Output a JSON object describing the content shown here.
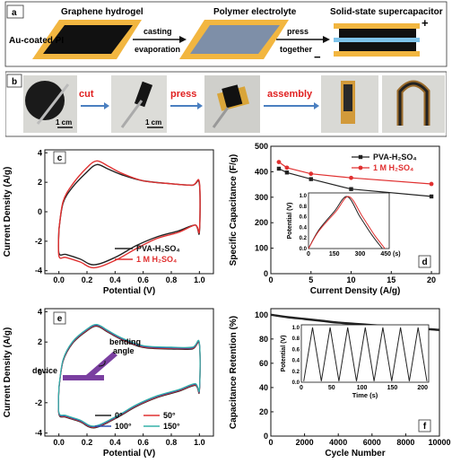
{
  "panel_a": {
    "letter": "a",
    "labels": {
      "graphene_hydrogel": "Graphene hydrogel",
      "au_coated_pi": "Au-coated PI",
      "casting": "casting",
      "evaporation": "evaporation",
      "polymer_electrolyte": "Polymer electrolyte",
      "press": "press",
      "together": "together",
      "supercap": "Solid-state supercapacitor",
      "plus": "+",
      "minus": "−"
    },
    "colors": {
      "gold": "#f2b640",
      "dark": "#111111",
      "blue_film": "#7e8fa8",
      "separator": "#7ec3ea"
    }
  },
  "panel_b": {
    "letter": "b",
    "steps": [
      "cut",
      "press",
      "assembly"
    ],
    "scale1": "1 cm",
    "scale2": "1 cm",
    "step_color": "#e02020",
    "arrow_color": "#4a7fc0"
  },
  "chart_data": [
    {
      "panel": "c",
      "type": "line",
      "xlabel": "Potential (V)",
      "ylabel": "Current Density (A/g)",
      "xlim": [
        -0.1,
        1.1
      ],
      "ylim": [
        -4.2,
        4.2
      ],
      "xticks": [
        "0.0",
        "0.2",
        "0.4",
        "0.6",
        "0.8",
        "1.0"
      ],
      "yticks": [
        "-4",
        "-2",
        "0",
        "2",
        "4"
      ],
      "series": [
        {
          "name": "PVA-H₂SO₄",
          "color": "#222222",
          "upper": [
            [
              0.0,
              -1.2
            ],
            [
              0.03,
              0.6
            ],
            [
              0.1,
              1.7
            ],
            [
              0.2,
              2.7
            ],
            [
              0.27,
              3.2
            ],
            [
              0.35,
              2.9
            ],
            [
              0.45,
              2.5
            ],
            [
              0.6,
              2.1
            ],
            [
              0.8,
              1.9
            ],
            [
              0.95,
              1.8
            ],
            [
              1.0,
              1.9
            ]
          ],
          "lower": [
            [
              1.0,
              -1.4
            ],
            [
              0.97,
              -0.9
            ],
            [
              0.85,
              -1.3
            ],
            [
              0.7,
              -1.7
            ],
            [
              0.55,
              -2.3
            ],
            [
              0.4,
              -3.1
            ],
            [
              0.25,
              -3.6
            ],
            [
              0.15,
              -3.2
            ],
            [
              0.05,
              -2.9
            ],
            [
              0.0,
              -2.8
            ]
          ]
        },
        {
          "name": "1 M H₂SO₄",
          "color": "#e03030",
          "upper": [
            [
              0.0,
              -1.2
            ],
            [
              0.03,
              0.7
            ],
            [
              0.1,
              1.9
            ],
            [
              0.2,
              3.0
            ],
            [
              0.27,
              3.45
            ],
            [
              0.35,
              3.1
            ],
            [
              0.45,
              2.6
            ],
            [
              0.6,
              2.1
            ],
            [
              0.8,
              1.9
            ],
            [
              0.95,
              1.8
            ],
            [
              1.0,
              2.0
            ]
          ],
          "lower": [
            [
              1.0,
              -1.3
            ],
            [
              0.97,
              -0.9
            ],
            [
              0.85,
              -1.4
            ],
            [
              0.7,
              -1.8
            ],
            [
              0.55,
              -2.5
            ],
            [
              0.4,
              -3.3
            ],
            [
              0.25,
              -3.8
            ],
            [
              0.15,
              -3.4
            ],
            [
              0.05,
              -3.1
            ],
            [
              0.0,
              -3.0
            ]
          ]
        }
      ]
    },
    {
      "panel": "d",
      "type": "line",
      "xlabel": "Current Density (A/g)",
      "ylabel": "Specific Capacitance (F/g)",
      "xlim": [
        0,
        21
      ],
      "ylim": [
        0,
        500
      ],
      "xticks": [
        "0",
        "5",
        "10",
        "15",
        "20"
      ],
      "yticks": [
        "0",
        "100",
        "200",
        "300",
        "400",
        "500"
      ],
      "series": [
        {
          "name": "PVA-H₂SO₄",
          "color": "#222222",
          "x": [
            1,
            2,
            5,
            10,
            20
          ],
          "y": [
            412,
            397,
            371,
            332,
            303
          ]
        },
        {
          "name": "1 M H₂SO₄",
          "color": "#e03030",
          "x": [
            1,
            2,
            5,
            10,
            20
          ],
          "y": [
            438,
            416,
            392,
            376,
            352
          ]
        }
      ],
      "inset": {
        "xlabel": "(s)",
        "ylabel": "Potential (V)",
        "xticks": [
          "0",
          "150",
          "300",
          "450"
        ],
        "yticks": [
          "0.0",
          "0.2",
          "0.4",
          "0.6",
          "0.8",
          "1.0"
        ],
        "xlim": [
          0,
          470
        ],
        "ylim": [
          0,
          1.05
        ],
        "series": [
          {
            "color": "#222222",
            "points": [
              [
                0,
                0
              ],
              [
                60,
                0.35
              ],
              [
                150,
                0.7
              ],
              [
                225,
                0.98
              ],
              [
                300,
                0.6
              ],
              [
                370,
                0.25
              ],
              [
                430,
                0
              ]
            ]
          },
          {
            "color": "#e03030",
            "points": [
              [
                0,
                0
              ],
              [
                60,
                0.33
              ],
              [
                160,
                0.7
              ],
              [
                235,
                0.98
              ],
              [
                315,
                0.6
              ],
              [
                385,
                0.25
              ],
              [
                445,
                0
              ]
            ]
          }
        ]
      }
    },
    {
      "panel": "e",
      "type": "line",
      "xlabel": "Potential (V)",
      "ylabel": "Current Density (A/g)",
      "xlim": [
        -0.1,
        1.1
      ],
      "ylim": [
        -4.2,
        4.2
      ],
      "xticks": [
        "0.0",
        "0.2",
        "0.4",
        "0.6",
        "0.8",
        "1.0"
      ],
      "yticks": [
        "-4",
        "-2",
        "0",
        "2",
        "4"
      ],
      "series": [
        {
          "name": "0°",
          "color": "#222222"
        },
        {
          "name": "50°",
          "color": "#e03030"
        },
        {
          "name": "100°",
          "color": "#2f4fb0"
        },
        {
          "name": "150°",
          "color": "#37b2a8"
        }
      ],
      "curve": {
        "upper": [
          [
            0.0,
            -1.0
          ],
          [
            0.03,
            0.8
          ],
          [
            0.1,
            2.0
          ],
          [
            0.2,
            2.8
          ],
          [
            0.27,
            3.1
          ],
          [
            0.35,
            2.7
          ],
          [
            0.45,
            2.2
          ],
          [
            0.6,
            1.7
          ],
          [
            0.8,
            1.6
          ],
          [
            0.95,
            1.6
          ],
          [
            1.0,
            1.9
          ]
        ],
        "lower": [
          [
            1.0,
            -1.2
          ],
          [
            0.97,
            -0.8
          ],
          [
            0.85,
            -1.2
          ],
          [
            0.7,
            -1.6
          ],
          [
            0.55,
            -2.2
          ],
          [
            0.4,
            -3.0
          ],
          [
            0.25,
            -3.6
          ],
          [
            0.15,
            -3.2
          ],
          [
            0.05,
            -2.9
          ],
          [
            0.0,
            -2.7
          ]
        ]
      },
      "inset_labels": {
        "bending": "bending",
        "angle": "angle",
        "device": "device"
      }
    },
    {
      "panel": "f",
      "type": "line",
      "xlabel": "Cycle Number",
      "ylabel": "Capacitance Retention (%)",
      "xlim": [
        0,
        10000
      ],
      "ylim": [
        0,
        105
      ],
      "xticks": [
        "0",
        "2000",
        "4000",
        "6000",
        "8000",
        "10000"
      ],
      "yticks": [
        "0",
        "20",
        "40",
        "60",
        "80",
        "100"
      ],
      "series": [
        {
          "color": "#222222",
          "x": [
            0,
            1000,
            2000,
            3000,
            4000,
            5000,
            6000,
            7000,
            8000,
            9000,
            10000
          ],
          "y": [
            100,
            98,
            96.5,
            95,
            93.5,
            92.5,
            91.5,
            90.5,
            89.5,
            88.5,
            87.5
          ]
        }
      ],
      "inset": {
        "xlabel": "Time (s)",
        "ylabel": "Potential (V)",
        "xticks": [
          "0",
          "50",
          "100",
          "150",
          "200"
        ],
        "yticks": [
          "0.0",
          "0.2",
          "0.4",
          "0.6",
          "0.8",
          "1.0"
        ],
        "xlim": [
          0,
          210
        ],
        "ylim": [
          0,
          1.05
        ],
        "period": 29,
        "cycles": 7
      }
    }
  ]
}
